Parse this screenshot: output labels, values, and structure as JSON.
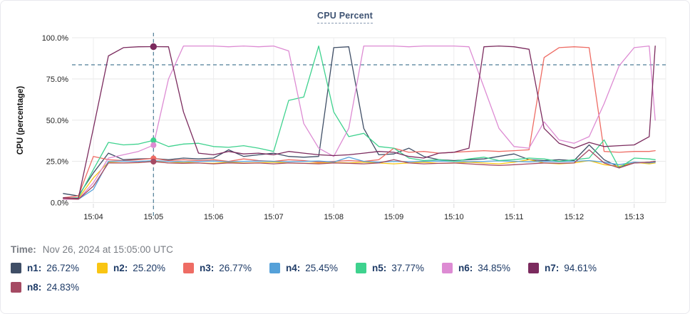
{
  "header": {
    "title": "CPU Percent"
  },
  "info": {
    "time_label": "Time:",
    "time_value": "Nov 26, 2024 at 15:05:00 UTC"
  },
  "chart_data": {
    "type": "line",
    "title": "CPU Percent",
    "ylabel": "CPU (percentage)",
    "ylim": [
      0,
      100
    ],
    "xlim_minutes": [
      3.5,
      13.35
    ],
    "grid": true,
    "legend_position": "bottom",
    "threshold_percent": 83.6,
    "crosshair_minute": 5.0,
    "crosshair_marker_series": [
      "n3",
      "n5",
      "n6",
      "n7",
      "n8"
    ],
    "y_ticks": [
      {
        "v": 100,
        "label": "100.0%"
      },
      {
        "v": 75,
        "label": "75.0%"
      },
      {
        "v": 50,
        "label": "50.0%"
      },
      {
        "v": 25,
        "label": "25.0%"
      },
      {
        "v": 0,
        "label": "0.0%"
      }
    ],
    "x_ticks": [
      {
        "t": 4,
        "label": "15:04"
      },
      {
        "t": 5,
        "label": "15:05"
      },
      {
        "t": 6,
        "label": "15:06"
      },
      {
        "t": 7,
        "label": "15:07"
      },
      {
        "t": 8,
        "label": "15:08"
      },
      {
        "t": 9,
        "label": "15:09"
      },
      {
        "t": 10,
        "label": "15:10"
      },
      {
        "t": 11,
        "label": "15:11"
      },
      {
        "t": 12,
        "label": "15:12"
      },
      {
        "t": 13,
        "label": "15:13"
      }
    ],
    "x": [
      3.5,
      3.75,
      4,
      4.25,
      4.5,
      4.75,
      5,
      5.25,
      5.5,
      5.75,
      6,
      6.25,
      6.5,
      6.75,
      7,
      7.25,
      7.5,
      7.75,
      8,
      8.25,
      8.5,
      8.75,
      9,
      9.25,
      9.5,
      9.75,
      10,
      10.25,
      10.5,
      10.75,
      11,
      11.25,
      11.5,
      11.75,
      12,
      12.25,
      12.5,
      12.75,
      13,
      13.25,
      13.35
    ],
    "series": [
      {
        "name": "n1",
        "color": "#3f4e66",
        "legend_value": "26.72%",
        "values": [
          5.5,
          4,
          18,
          30,
          26,
          26.5,
          26.72,
          26,
          27,
          26.5,
          27,
          32,
          28,
          29,
          30,
          28,
          27.5,
          28,
          94,
          94.5,
          45,
          29,
          29.5,
          33,
          28,
          26,
          25.5,
          26,
          26.5,
          28,
          29.5,
          26,
          25.5,
          26,
          25.5,
          35,
          26,
          21.5,
          24,
          24.5,
          25
        ]
      },
      {
        "name": "n2",
        "color": "#f9c513",
        "legend_value": "25.20%",
        "values": [
          2,
          2.5,
          15,
          24.5,
          24,
          24.2,
          25.2,
          24,
          24.5,
          24,
          23.8,
          24.5,
          24,
          24.2,
          24.5,
          24,
          23.8,
          24,
          24.3,
          24,
          24.5,
          24,
          23.5,
          24,
          24.5,
          23.8,
          24,
          24.5,
          24,
          23.5,
          24.5,
          26,
          24,
          23.5,
          24,
          25.5,
          23,
          22,
          24.5,
          23.5,
          24
        ]
      },
      {
        "name": "n3",
        "color": "#ee6c64",
        "legend_value": "26.77%",
        "values": [
          3,
          4,
          28,
          26,
          25.5,
          26,
          26.77,
          25.5,
          26,
          25.5,
          26,
          25,
          26.5,
          25.5,
          25,
          26,
          25.5,
          24.5,
          25,
          25.5,
          25,
          26,
          33,
          30.5,
          31,
          30,
          30.5,
          31,
          31.5,
          31,
          31.5,
          32,
          88,
          94,
          94.5,
          94,
          31,
          30.5,
          31,
          31,
          31.5
        ]
      },
      {
        "name": "n4",
        "color": "#55a1d9",
        "legend_value": "25.45%",
        "values": [
          2,
          2,
          8,
          25,
          25.2,
          25,
          25.45,
          25,
          24.8,
          25,
          25.2,
          24.8,
          25,
          25.2,
          25,
          24.8,
          25,
          25.2,
          24.6,
          27.5,
          25,
          24.5,
          25,
          24.8,
          25,
          25.2,
          25,
          24.8,
          25,
          25.3,
          25,
          24.7,
          25,
          24.8,
          25,
          25.5,
          24.5,
          23,
          24.5,
          24,
          24.5
        ]
      },
      {
        "name": "n5",
        "color": "#3ed28e",
        "legend_value": "37.77%",
        "values": [
          2.5,
          3,
          20,
          36.5,
          35,
          35.5,
          37.77,
          34,
          35.5,
          36,
          34,
          33.5,
          34.5,
          33,
          31,
          62,
          64,
          95,
          55,
          40,
          42,
          34,
          33,
          27,
          25.5,
          26,
          25,
          26.5,
          27.5,
          25.5,
          26,
          27,
          26.5,
          25,
          26,
          27,
          38,
          21,
          27,
          26.5,
          26
        ]
      },
      {
        "name": "n6",
        "color": "#dd8bd3",
        "legend_value": "34.85%",
        "values": [
          2,
          2,
          12,
          27,
          29,
          31,
          34.85,
          75,
          95,
          95,
          95,
          94.5,
          95,
          94.5,
          95,
          92,
          48,
          33,
          28,
          45,
          95,
          95,
          95,
          94.5,
          95,
          95,
          95,
          94.5,
          70,
          45,
          34,
          33,
          49,
          38,
          36,
          40,
          60,
          83,
          94,
          95,
          50
        ]
      },
      {
        "name": "n7",
        "color": "#7b2b5e",
        "legend_value": "94.61%",
        "values": [
          3,
          2.5,
          45,
          89,
          94,
          94.5,
          94.61,
          94.5,
          55,
          30,
          29,
          31,
          29.5,
          30,
          29,
          31,
          30,
          29,
          28.5,
          29,
          30,
          31,
          30.5,
          28,
          27,
          30,
          30.5,
          33,
          94.5,
          95,
          94.5,
          93,
          45,
          36,
          33,
          36.5,
          34,
          34.5,
          35,
          40,
          95
        ]
      },
      {
        "name": "n8",
        "color": "#a54a63",
        "legend_value": "24.83%",
        "values": [
          2.5,
          2,
          10,
          24,
          24,
          24.3,
          24.83,
          24,
          23.8,
          24,
          23.5,
          24,
          23.8,
          24,
          23.5,
          24,
          23.8,
          23.5,
          24,
          23.8,
          23.5,
          24,
          26,
          24,
          23.5,
          23.8,
          24,
          23.5,
          23,
          22.5,
          23,
          23.5,
          24,
          23.8,
          24,
          32,
          24,
          21,
          24,
          24.5,
          25
        ]
      }
    ]
  }
}
